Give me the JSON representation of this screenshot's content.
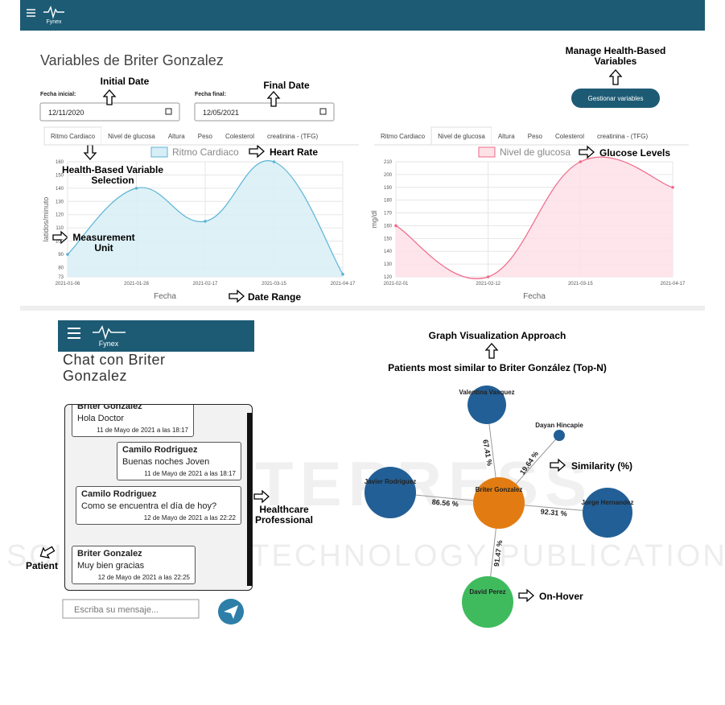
{
  "header": {
    "logo": "Fynex"
  },
  "variables_page": {
    "title": "Variables de Briter Gonzalez",
    "start_label": "Fecha inicial:",
    "start_date": "12/11/2020",
    "end_label": "Fecha final:",
    "end_date": "12/05/2021",
    "manage_button": "Gestionar variables"
  },
  "annotations": {
    "initial_date": "Initial Date",
    "final_date": "Final Date",
    "manage": "Manage Health-Based Variables",
    "selection": "Health-Based Variable Selection",
    "unit": "Measurement Unit",
    "heart_rate": "Heart Rate",
    "glucose": "Glucose Levels",
    "date_range": "Date Range",
    "graph_approach": "Graph Visualization Approach",
    "similarity": "Similarity (%)",
    "professional": "Healthcare Professional",
    "patient": "Patient",
    "hover": "On-Hover"
  },
  "chart_data": [
    {
      "type": "line",
      "tabs": [
        "Ritmo Cardiaco",
        "Nivel de glucosa",
        "Altura",
        "Peso",
        "Colesterol",
        "creatinina - (TFG)"
      ],
      "active_tab": 0,
      "x_label": "Fecha",
      "y_label": "latidos/minuto",
      "categories": [
        "2021-01-06",
        "2021-01-28",
        "2021-02-17",
        "2021-03-15",
        "2021-04-17"
      ],
      "series": [
        {
          "name": "Ritmo Cardiaco",
          "color": "#5ab4d6",
          "fill": "#d8eef6",
          "values": [
            90,
            140,
            115,
            160,
            75
          ]
        }
      ],
      "ylim": [
        73,
        160
      ],
      "yticks": [
        73,
        80,
        90,
        100,
        110,
        120,
        130,
        140,
        150,
        160
      ],
      "grid": true
    },
    {
      "type": "line",
      "tabs": [
        "Ritmo Cardiaco",
        "Nivel de glucosa",
        "Altura",
        "Peso",
        "Colesterol",
        "creatinina - (TFG)"
      ],
      "active_tab": 1,
      "x_label": "Fecha",
      "y_label": "mg/dl",
      "categories": [
        "2021-02-01",
        "2021-02-12",
        "2021-03-15",
        "2021-04-17"
      ],
      "series": [
        {
          "name": "Nivel de glucosa",
          "color": "#ef6a89",
          "fill": "#fde1e7",
          "values": [
            160,
            120,
            210,
            190
          ]
        }
      ],
      "ylim": [
        120,
        210
      ],
      "yticks": [
        120,
        130,
        140,
        150,
        160,
        170,
        180,
        190,
        200,
        210
      ],
      "grid": true
    }
  ],
  "chat": {
    "logo": "Fynex",
    "title": "Chat con Briter Gonzalez",
    "messages": [
      {
        "sender": "Briter Gonzalez",
        "text": "Hola Doctor",
        "time": "11 de Mayo de 2021 a las 18:17"
      },
      {
        "sender": "Camilo Rodriguez",
        "text": "Buenas noches Joven",
        "time": "11 de Mayo de 2021 a las 18:17"
      },
      {
        "sender": "Camilo Rodriguez",
        "text": "Como se encuentra el día de hoy?",
        "time": "12 de Mayo de 2021 a las 22:22"
      },
      {
        "sender": "Briter Gonzalez",
        "text": "Muy bien gracias",
        "time": "12 de Mayo de 2021 a las 22:25"
      }
    ],
    "input_placeholder": "Escriba su mensaje..."
  },
  "graph": {
    "title": "Patients most similar to Briter González (Top-N)",
    "nodes": [
      {
        "label": "Valentina Vasquez",
        "color": "#225f96"
      },
      {
        "label": "Dayan Hincapie",
        "color": "#225f96"
      },
      {
        "label": "Javier Rodriguez",
        "color": "#225f96"
      },
      {
        "label": "Briter Gonzalez",
        "color": "#e27c12"
      },
      {
        "label": "Jorge Hernandez",
        "color": "#225f96"
      },
      {
        "label": "David Perez",
        "color": "#3fbb5e"
      }
    ],
    "edges": [
      {
        "label": "67.41 %"
      },
      {
        "label": "19.64 %"
      },
      {
        "label": "86.56 %"
      },
      {
        "label": "92.31 %"
      },
      {
        "label": "91.47 %"
      }
    ]
  },
  "watermark": {
    "line1": "SCITEPRESS",
    "line2": "SCIENCE AND TECHNOLOGY PUBLICATIONS"
  }
}
